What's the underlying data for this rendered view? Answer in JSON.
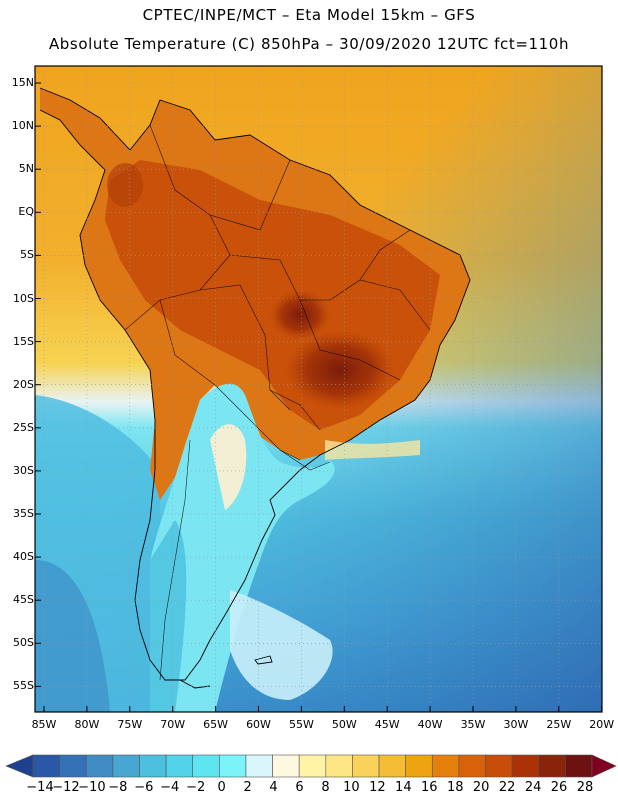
{
  "header": {
    "line1": "CPTEC/INPE/MCT –  Eta Model 15km – GFS",
    "line2": "Absolute Temperature (C) 850hPa – 30/09/2020 12UTC fct=110h"
  },
  "axes": {
    "lat_labels": [
      "15N",
      "10N",
      "5N",
      "EQ",
      "5S",
      "10S",
      "15S",
      "20S",
      "25S",
      "30S",
      "35S",
      "40S",
      "45S",
      "50S",
      "55S"
    ],
    "lon_labels": [
      "85W",
      "80W",
      "75W",
      "70W",
      "65W",
      "60W",
      "55W",
      "50W",
      "45W",
      "40W",
      "35W",
      "30W",
      "25W",
      "20W"
    ]
  },
  "colorbar": {
    "labels": [
      "-14",
      "-12",
      "-10",
      "-8",
      "-6",
      "-4",
      "-2",
      "0",
      "2",
      "4",
      "6",
      "8",
      "10",
      "12",
      "14",
      "16",
      "18",
      "20",
      "22",
      "24",
      "26",
      "28"
    ],
    "colors": [
      "#1f3f8f",
      "#2a58a6",
      "#3571b6",
      "#3f8cc4",
      "#47a7d2",
      "#4dbfdf",
      "#53d3ea",
      "#5ee5f2",
      "#7af3f9",
      "#d8f6fb",
      "#fff8e0",
      "#fff4a6",
      "#fde685",
      "#f9d25c",
      "#f4bd35",
      "#eea312",
      "#e4800b",
      "#d8620a",
      "#c74d08",
      "#aa3206",
      "#88240a",
      "#6e1111",
      "#800020"
    ]
  },
  "map": {
    "land_color": "#d05a10",
    "ocean_warm": "#efad22",
    "ocean_cold": "#3fa8d6"
  }
}
